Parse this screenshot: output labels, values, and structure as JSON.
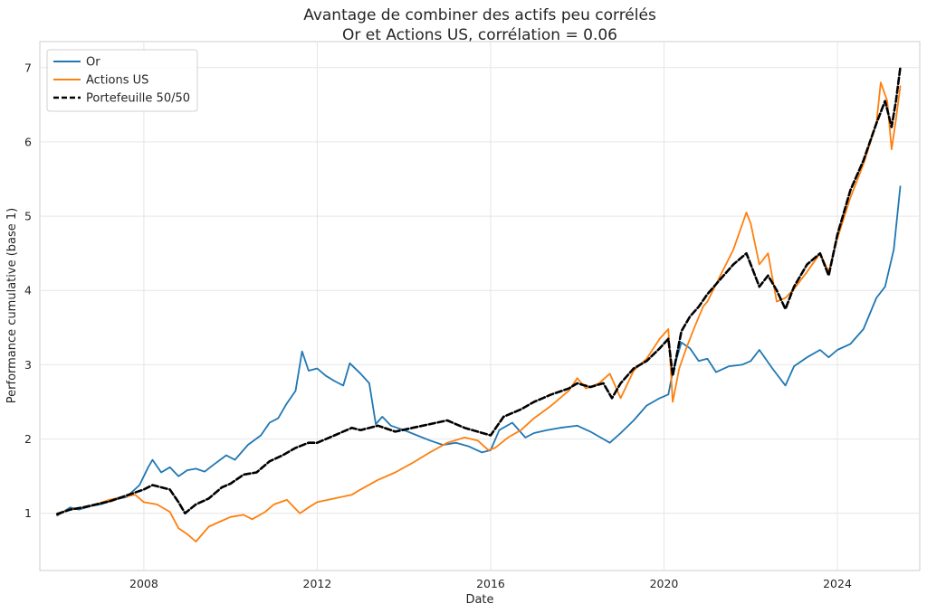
{
  "chart_data": {
    "type": "line",
    "title": "Avantage de combiner des actifs peu corrélés",
    "subtitle": "Or et Actions US, corrélation = 0.06",
    "xlabel": "Date",
    "ylabel": "Performance cumulative (base 1)",
    "x_tick_labels": [
      "2008",
      "2012",
      "2016",
      "2020",
      "2024"
    ],
    "x_tick_values": [
      2008,
      2012,
      2016,
      2020,
      2024
    ],
    "y_tick_labels": [
      "1",
      "2",
      "3",
      "4",
      "5",
      "6",
      "7"
    ],
    "y_tick_values": [
      1,
      2,
      3,
      4,
      5,
      6,
      7
    ],
    "xlim": [
      2005.6,
      2025.9
    ],
    "ylim": [
      0.23,
      7.35
    ],
    "grid": true,
    "legend_position": "top-left",
    "series": [
      {
        "name": "Or",
        "color": "#1f77b4",
        "style": "solid",
        "x": [
          2006.0,
          2006.3,
          2006.5,
          2006.8,
          2007.0,
          2007.3,
          2007.6,
          2007.9,
          2008.1,
          2008.2,
          2008.4,
          2008.6,
          2008.8,
          2009.0,
          2009.2,
          2009.4,
          2009.6,
          2009.9,
          2010.1,
          2010.4,
          2010.7,
          2010.9,
          2011.1,
          2011.3,
          2011.5,
          2011.65,
          2011.8,
          2012.0,
          2012.2,
          2012.4,
          2012.6,
          2012.75,
          2013.0,
          2013.2,
          2013.35,
          2013.5,
          2013.7,
          2014.0,
          2014.3,
          2014.6,
          2014.9,
          2015.2,
          2015.5,
          2015.8,
          2016.0,
          2016.2,
          2016.5,
          2016.8,
          2017.0,
          2017.3,
          2017.6,
          2018.0,
          2018.3,
          2018.6,
          2018.75,
          2019.0,
          2019.3,
          2019.6,
          2019.9,
          2020.1,
          2020.2,
          2020.4,
          2020.6,
          2020.8,
          2021.0,
          2021.2,
          2021.5,
          2021.8,
          2022.0,
          2022.2,
          2022.5,
          2022.8,
          2023.0,
          2023.3,
          2023.6,
          2023.8,
          2024.0,
          2024.3,
          2024.6,
          2024.9,
          2025.1,
          2025.3,
          2025.45
        ],
        "values": [
          0.97,
          1.08,
          1.05,
          1.1,
          1.12,
          1.18,
          1.22,
          1.38,
          1.62,
          1.72,
          1.55,
          1.62,
          1.5,
          1.58,
          1.6,
          1.56,
          1.65,
          1.78,
          1.72,
          1.92,
          2.05,
          2.22,
          2.28,
          2.48,
          2.65,
          3.18,
          2.92,
          2.95,
          2.85,
          2.78,
          2.72,
          3.02,
          2.88,
          2.75,
          2.2,
          2.3,
          2.18,
          2.12,
          2.05,
          1.98,
          1.92,
          1.95,
          1.9,
          1.82,
          1.85,
          2.12,
          2.22,
          2.02,
          2.08,
          2.12,
          2.15,
          2.18,
          2.1,
          2.0,
          1.95,
          2.08,
          2.25,
          2.45,
          2.55,
          2.6,
          2.9,
          3.3,
          3.22,
          3.05,
          3.08,
          2.9,
          2.98,
          3.0,
          3.05,
          3.2,
          2.95,
          2.72,
          2.98,
          3.1,
          3.2,
          3.1,
          3.2,
          3.28,
          3.48,
          3.9,
          4.05,
          4.55,
          5.4
        ]
      },
      {
        "name": "Actions US",
        "color": "#ff7f0e",
        "style": "solid",
        "x": [
          2006.0,
          2006.3,
          2006.6,
          2006.9,
          2007.2,
          2007.5,
          2007.8,
          2008.0,
          2008.3,
          2008.6,
          2008.8,
          2009.0,
          2009.2,
          2009.5,
          2009.8,
          2010.0,
          2010.3,
          2010.5,
          2010.8,
          2011.0,
          2011.3,
          2011.6,
          2011.8,
          2012.0,
          2012.4,
          2012.8,
          2013.0,
          2013.4,
          2013.8,
          2014.2,
          2014.6,
          2015.0,
          2015.4,
          2015.7,
          2015.95,
          2016.1,
          2016.4,
          2016.7,
          2017.0,
          2017.4,
          2017.8,
          2018.0,
          2018.2,
          2018.5,
          2018.75,
          2019.0,
          2019.3,
          2019.6,
          2019.9,
          2020.1,
          2020.2,
          2020.35,
          2020.5,
          2020.7,
          2020.9,
          2021.0,
          2021.3,
          2021.6,
          2021.9,
          2022.0,
          2022.2,
          2022.4,
          2022.6,
          2022.8,
          2023.0,
          2023.3,
          2023.6,
          2023.8,
          2024.0,
          2024.3,
          2024.6,
          2024.9,
          2025.0,
          2025.15,
          2025.25,
          2025.35,
          2025.45
        ],
        "values": [
          1.0,
          1.05,
          1.08,
          1.12,
          1.18,
          1.22,
          1.25,
          1.15,
          1.12,
          1.02,
          0.8,
          0.72,
          0.62,
          0.82,
          0.9,
          0.95,
          0.98,
          0.92,
          1.02,
          1.12,
          1.18,
          1.0,
          1.08,
          1.15,
          1.2,
          1.25,
          1.32,
          1.45,
          1.55,
          1.68,
          1.82,
          1.95,
          2.02,
          1.98,
          1.85,
          1.88,
          2.02,
          2.12,
          2.28,
          2.45,
          2.65,
          2.82,
          2.68,
          2.75,
          2.88,
          2.55,
          2.92,
          3.08,
          3.35,
          3.48,
          2.5,
          2.95,
          3.2,
          3.5,
          3.78,
          3.85,
          4.2,
          4.55,
          5.05,
          4.9,
          4.35,
          4.5,
          3.85,
          3.9,
          4.02,
          4.25,
          4.5,
          4.25,
          4.7,
          5.25,
          5.7,
          6.25,
          6.8,
          6.55,
          5.9,
          6.3,
          6.75
        ]
      },
      {
        "name": "Portefeuille 50/50",
        "color": "#000000",
        "style": "dashed",
        "x": [
          2006.0,
          2006.3,
          2006.6,
          2006.9,
          2007.2,
          2007.5,
          2007.8,
          2008.0,
          2008.2,
          2008.4,
          2008.6,
          2008.8,
          2008.95,
          2009.2,
          2009.5,
          2009.8,
          2010.0,
          2010.3,
          2010.6,
          2010.9,
          2011.2,
          2011.5,
          2011.8,
          2012.0,
          2012.4,
          2012.8,
          2013.0,
          2013.4,
          2013.8,
          2014.2,
          2014.6,
          2015.0,
          2015.4,
          2015.7,
          2016.0,
          2016.3,
          2016.7,
          2017.0,
          2017.4,
          2017.8,
          2018.0,
          2018.3,
          2018.6,
          2018.8,
          2019.0,
          2019.3,
          2019.6,
          2019.9,
          2020.1,
          2020.2,
          2020.4,
          2020.6,
          2020.8,
          2021.0,
          2021.3,
          2021.6,
          2021.9,
          2022.0,
          2022.2,
          2022.4,
          2022.6,
          2022.8,
          2023.0,
          2023.3,
          2023.6,
          2023.8,
          2024.0,
          2024.3,
          2024.6,
          2024.9,
          2025.1,
          2025.25,
          2025.35,
          2025.45
        ],
        "values": [
          0.99,
          1.05,
          1.08,
          1.12,
          1.16,
          1.22,
          1.28,
          1.32,
          1.38,
          1.35,
          1.32,
          1.15,
          1.0,
          1.12,
          1.2,
          1.35,
          1.4,
          1.52,
          1.55,
          1.7,
          1.78,
          1.88,
          1.95,
          1.95,
          2.05,
          2.15,
          2.12,
          2.18,
          2.1,
          2.15,
          2.2,
          2.25,
          2.15,
          2.1,
          2.05,
          2.3,
          2.4,
          2.5,
          2.6,
          2.68,
          2.75,
          2.7,
          2.75,
          2.55,
          2.75,
          2.95,
          3.05,
          3.22,
          3.35,
          2.85,
          3.45,
          3.65,
          3.78,
          3.95,
          4.15,
          4.35,
          4.5,
          4.35,
          4.05,
          4.2,
          4.0,
          3.75,
          4.05,
          4.35,
          4.5,
          4.2,
          4.75,
          5.35,
          5.75,
          6.25,
          6.55,
          6.2,
          6.55,
          7.0
        ]
      }
    ]
  }
}
